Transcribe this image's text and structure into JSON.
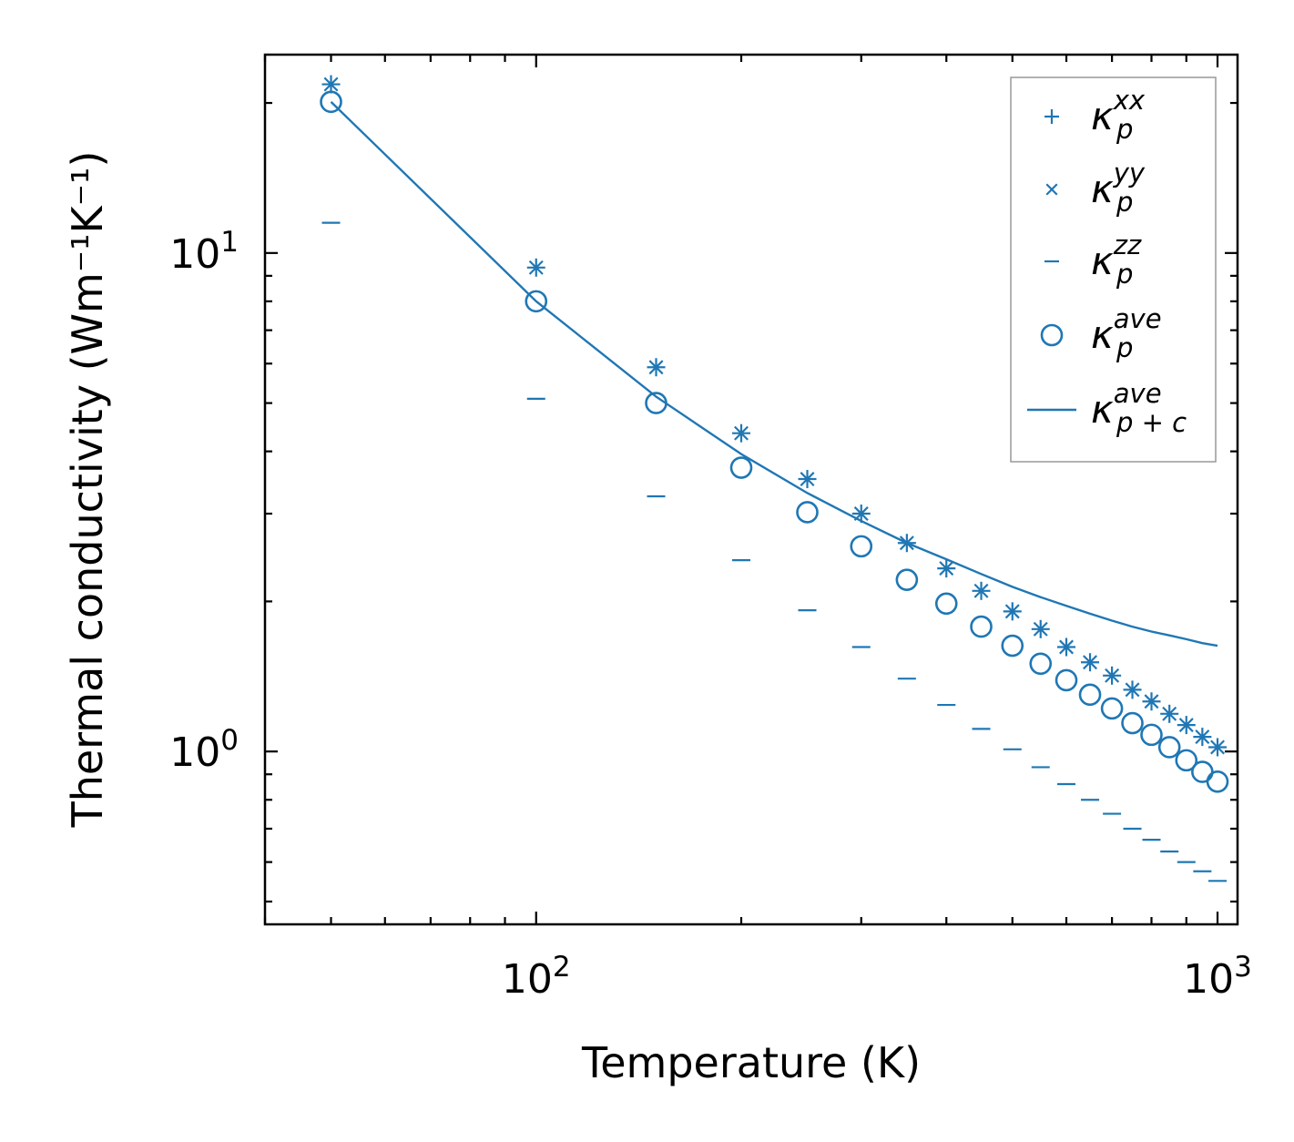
{
  "chart_data": {
    "type": "scatter",
    "xscale": "log",
    "yscale": "log",
    "xlabel": "Temperature (K)",
    "ylabel": "Thermal conductivity (Wm⁻¹K⁻¹)",
    "xlim": [
      40,
      1070
    ],
    "ylim": [
      0.45,
      25
    ],
    "xticks": [
      {
        "value": 100,
        "base": "10",
        "exp": "2"
      },
      {
        "value": 1000,
        "base": "10",
        "exp": "3"
      }
    ],
    "yticks": [
      {
        "value": 1,
        "base": "10",
        "exp": "0"
      },
      {
        "value": 10,
        "base": "10",
        "exp": "1"
      }
    ],
    "color": "#1f77b4",
    "x": [
      50,
      100,
      150,
      200,
      250,
      300,
      350,
      400,
      450,
      500,
      550,
      600,
      650,
      700,
      750,
      800,
      850,
      900,
      950,
      1000
    ],
    "series": [
      {
        "name": "κ_p^xx",
        "legend_base": "κ",
        "legend_sup": "xx",
        "legend_sub": "p",
        "marker": "+",
        "values": [
          21.8,
          9.35,
          5.9,
          4.35,
          3.52,
          3.0,
          2.62,
          2.33,
          2.1,
          1.91,
          1.76,
          1.62,
          1.51,
          1.42,
          1.33,
          1.26,
          1.19,
          1.13,
          1.07,
          1.02
        ]
      },
      {
        "name": "κ_p^yy",
        "legend_base": "κ",
        "legend_sup": "yy",
        "legend_sub": "p",
        "marker": "x",
        "values": [
          21.8,
          9.35,
          5.9,
          4.35,
          3.52,
          3.0,
          2.62,
          2.33,
          2.1,
          1.91,
          1.76,
          1.62,
          1.51,
          1.42,
          1.33,
          1.26,
          1.19,
          1.13,
          1.07,
          1.02
        ]
      },
      {
        "name": "κ_p^zz",
        "legend_base": "κ",
        "legend_sup": "zz",
        "legend_sub": "p",
        "marker": "_",
        "values": [
          11.5,
          5.1,
          3.25,
          2.42,
          1.92,
          1.62,
          1.4,
          1.24,
          1.11,
          1.01,
          0.93,
          0.86,
          0.8,
          0.75,
          0.7,
          0.665,
          0.63,
          0.6,
          0.575,
          0.55
        ]
      },
      {
        "name": "κ_p^ave",
        "legend_base": "κ",
        "legend_sup": "ave",
        "legend_sub": "p",
        "marker": "o",
        "values": [
          20.1,
          8.0,
          5.0,
          3.71,
          3.02,
          2.58,
          2.21,
          1.98,
          1.78,
          1.63,
          1.5,
          1.39,
          1.3,
          1.22,
          1.14,
          1.08,
          1.02,
          0.96,
          0.91,
          0.87
        ]
      },
      {
        "name": "κ_p+c^ave",
        "legend_base": "κ",
        "legend_sup": "ave",
        "legend_sub": "p + c",
        "marker": "line",
        "values": [
          20.1,
          8.0,
          5.15,
          3.95,
          3.3,
          2.9,
          2.62,
          2.43,
          2.27,
          2.14,
          2.04,
          1.96,
          1.89,
          1.83,
          1.78,
          1.74,
          1.71,
          1.68,
          1.65,
          1.63
        ]
      }
    ],
    "legend": {
      "location": "upper right"
    }
  }
}
